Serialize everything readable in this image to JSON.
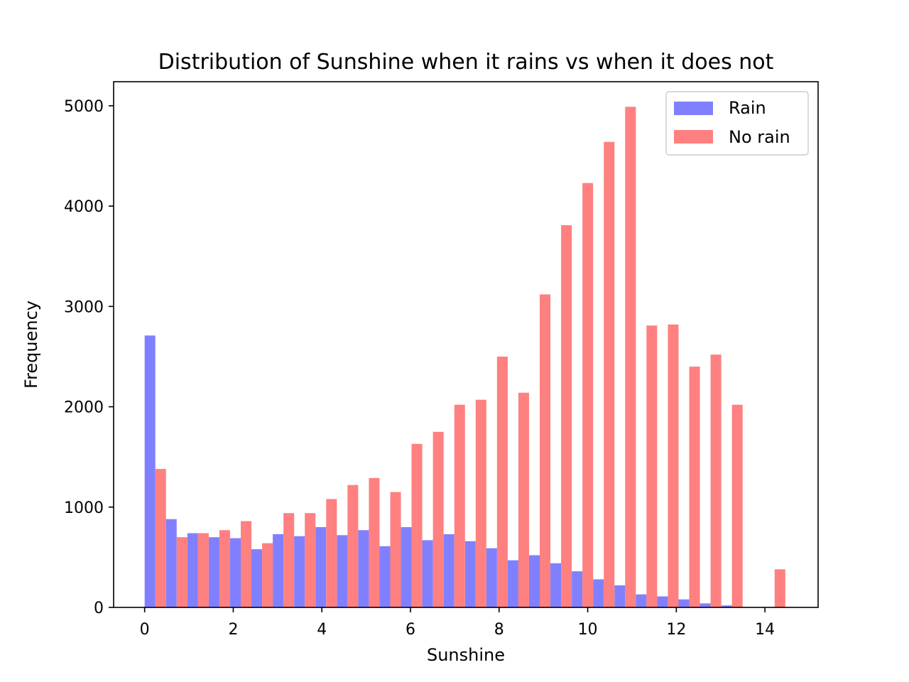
{
  "chart_data": {
    "type": "bar",
    "title": "Distribution of Sunshine when it rains vs when it does not",
    "xlabel": "Sunshine",
    "ylabel": "Frequency",
    "xlim": [
      -0.7,
      15.2
    ],
    "ylim": [
      0,
      5240
    ],
    "xticks": [
      0,
      2,
      4,
      6,
      8,
      10,
      12,
      14
    ],
    "yticks": [
      0,
      1000,
      2000,
      3000,
      4000,
      5000
    ],
    "bin_start": 0,
    "bin_width": 0.482,
    "legend_position": "top-right",
    "grid": false,
    "series": [
      {
        "name": "Rain",
        "color": "#8080ff",
        "values": [
          2710,
          880,
          740,
          700,
          690,
          580,
          730,
          710,
          800,
          720,
          770,
          610,
          800,
          670,
          730,
          660,
          590,
          470,
          520,
          440,
          360,
          280,
          220,
          130,
          110,
          80,
          40,
          20,
          0,
          0
        ]
      },
      {
        "name": "No rain",
        "color": "#ff8080",
        "values": [
          1380,
          700,
          740,
          770,
          860,
          640,
          940,
          940,
          1080,
          1220,
          1290,
          1150,
          1630,
          1750,
          2020,
          2070,
          2500,
          2140,
          3120,
          3810,
          4230,
          4640,
          4990,
          2810,
          2820,
          2400,
          2520,
          2020,
          0,
          380
        ]
      }
    ]
  }
}
